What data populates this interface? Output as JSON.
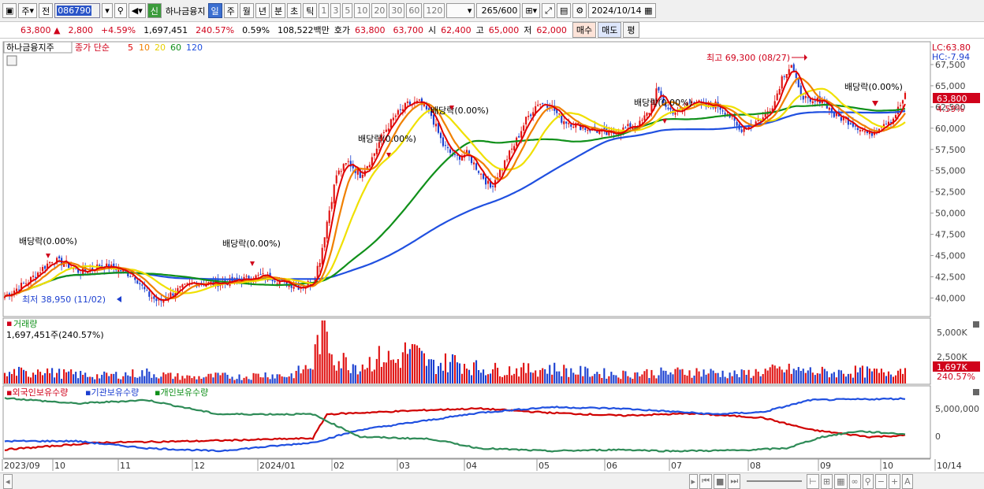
{
  "toolbar": {
    "market": "주",
    "period_prefix": "전",
    "code": "086790",
    "credit": "신",
    "name": "하나금융지",
    "periods": [
      "일",
      "주",
      "월",
      "년",
      "분",
      "초",
      "틱"
    ],
    "selected_period": "일",
    "intervals": [
      "1",
      "3",
      "5",
      "10",
      "20",
      "30",
      "60",
      "120"
    ],
    "count": "265",
    "count_max": "/600",
    "date": "2024/10/14"
  },
  "quote": {
    "price": "63,800",
    "change": "2,800",
    "change_pct": "+4.59%",
    "volume": "1,697,451",
    "volume_ratio": "240.57%",
    "turnover": "0.59%",
    "amount": "108,522백만",
    "bid_label": "호가",
    "bid": "63,800",
    "ask": "63,700",
    "open_label": "시",
    "open": "62,400",
    "high_label": "고",
    "high": "65,000",
    "low_label": "저",
    "low": "62,000",
    "buy": "매수",
    "sell": "매도",
    "avg": "평"
  },
  "legend": {
    "title": "하나금융지주",
    "close": "종가 단순",
    "ma": [
      "5",
      "10",
      "20",
      "60",
      "120"
    ]
  },
  "annotations": {
    "lc": "LC:63.80",
    "hc": "HC:-7.94",
    "price_tag": "63,800",
    "pct_tag": "4.59%",
    "high": "최고 69,300 (08/27)",
    "low": "최저 38,950 (11/02)",
    "div1": "배당락(0.00%)",
    "div2": "배당락(0.00%)",
    "div3": "배당락(0.00%)",
    "div4": "배당락(0.00%)",
    "div5": "배당락(0.00%)",
    "div6": "배당락(0.00%)"
  },
  "volume_panel": {
    "title": "거래량",
    "value": "1,697,451주(240.57%)",
    "tag": "1,697K",
    "tag_pct": "240.57%",
    "ticks": [
      "5,000K",
      "2,500K"
    ]
  },
  "holdings_panel": {
    "series": [
      "외국인보유수량",
      "기관보유수량",
      "개인보유수량"
    ],
    "ticks": [
      "5,000,000",
      "0"
    ]
  },
  "chart_data": {
    "type": "candlestick",
    "y_ticks": [
      "67,500",
      "65,000",
      "62,500",
      "60,000",
      "57,500",
      "55,000",
      "52,500",
      "50,000",
      "47,500",
      "45,000",
      "42,500",
      "40,000"
    ],
    "x_labels": [
      "2023/09",
      "10",
      "11",
      "12",
      "2024/01",
      "02",
      "03",
      "04",
      "05",
      "06",
      "07",
      "08",
      "09",
      "10",
      "10/14"
    ],
    "ylim": [
      38000,
      70000
    ],
    "colors": {
      "up": "#e01010",
      "down": "#1a3fd0",
      "ma5": "#e00000",
      "ma10": "#f08000",
      "ma20": "#f0e000",
      "ma60": "#10901a",
      "ma120": "#2050e0"
    },
    "price_path": [
      [
        0,
        40200
      ],
      [
        10,
        42000
      ],
      [
        20,
        44500
      ],
      [
        26,
        44000
      ],
      [
        32,
        43000
      ],
      [
        40,
        43800
      ],
      [
        47,
        43500
      ],
      [
        55,
        42500
      ],
      [
        60,
        40500
      ],
      [
        65,
        39500
      ],
      [
        72,
        40800
      ],
      [
        80,
        41800
      ],
      [
        87,
        41700
      ],
      [
        95,
        41900
      ],
      [
        103,
        42300
      ],
      [
        108,
        42600
      ],
      [
        113,
        42400
      ],
      [
        118,
        41800
      ],
      [
        125,
        41300
      ],
      [
        130,
        42000
      ],
      [
        133,
        44500
      ],
      [
        136,
        49000
      ],
      [
        140,
        54500
      ],
      [
        145,
        56000
      ],
      [
        150,
        54500
      ],
      [
        155,
        56500
      ],
      [
        160,
        59500
      ],
      [
        165,
        61500
      ],
      [
        170,
        62800
      ],
      [
        175,
        63000
      ],
      [
        180,
        61500
      ],
      [
        185,
        58000
      ],
      [
        190,
        56500
      ],
      [
        195,
        57000
      ],
      [
        200,
        55000
      ],
      [
        205,
        53000
      ],
      [
        210,
        55500
      ],
      [
        215,
        58000
      ],
      [
        220,
        61000
      ],
      [
        225,
        63000
      ],
      [
        230,
        62800
      ],
      [
        235,
        61000
      ],
      [
        240,
        60500
      ],
      [
        245,
        60000
      ],
      [
        250,
        59700
      ],
      [
        255,
        59200
      ],
      [
        262,
        60000
      ],
      [
        268,
        60500
      ],
      [
        272,
        62000
      ],
      [
        275,
        64500
      ],
      [
        280,
        62200
      ],
      [
        285,
        61800
      ],
      [
        290,
        63500
      ],
      [
        295,
        62500
      ],
      [
        300,
        62800
      ],
      [
        305,
        61800
      ],
      [
        310,
        59800
      ],
      [
        315,
        60500
      ],
      [
        320,
        61200
      ],
      [
        325,
        63200
      ],
      [
        328,
        66000
      ],
      [
        332,
        67500
      ],
      [
        335,
        64500
      ],
      [
        340,
        62800
      ],
      [
        345,
        63500
      ],
      [
        350,
        61500
      ],
      [
        355,
        61000
      ],
      [
        360,
        60200
      ],
      [
        365,
        59200
      ],
      [
        370,
        60500
      ],
      [
        375,
        61200
      ],
      [
        380,
        63800
      ]
    ],
    "volume_path": [
      [
        0,
        25
      ],
      [
        5,
        40
      ],
      [
        10,
        30
      ],
      [
        15,
        55
      ],
      [
        20,
        35
      ],
      [
        30,
        30
      ],
      [
        40,
        25
      ],
      [
        50,
        30
      ],
      [
        60,
        35
      ],
      [
        70,
        25
      ],
      [
        80,
        20
      ],
      [
        90,
        25
      ],
      [
        100,
        22
      ],
      [
        110,
        30
      ],
      [
        120,
        25
      ],
      [
        130,
        60
      ],
      [
        133,
        170
      ],
      [
        136,
        160
      ],
      [
        140,
        80
      ],
      [
        150,
        60
      ],
      [
        155,
        75
      ],
      [
        160,
        90
      ],
      [
        165,
        70
      ],
      [
        170,
        110
      ],
      [
        175,
        90
      ],
      [
        180,
        60
      ],
      [
        190,
        75
      ],
      [
        200,
        50
      ],
      [
        210,
        45
      ],
      [
        220,
        45
      ],
      [
        230,
        50
      ],
      [
        240,
        40
      ],
      [
        250,
        35
      ],
      [
        260,
        30
      ],
      [
        270,
        35
      ],
      [
        280,
        35
      ],
      [
        290,
        40
      ],
      [
        300,
        35
      ],
      [
        310,
        30
      ],
      [
        320,
        40
      ],
      [
        330,
        45
      ],
      [
        340,
        40
      ],
      [
        350,
        35
      ],
      [
        360,
        40
      ],
      [
        370,
        35
      ],
      [
        380,
        50
      ]
    ],
    "foreign_path": [
      [
        0,
        10
      ],
      [
        40,
        20
      ],
      [
        80,
        22
      ],
      [
        130,
        26
      ],
      [
        136,
        60
      ],
      [
        180,
        66
      ],
      [
        200,
        68
      ],
      [
        230,
        62
      ],
      [
        260,
        58
      ],
      [
        290,
        61
      ],
      [
        320,
        55
      ],
      [
        340,
        38
      ],
      [
        365,
        28
      ],
      [
        380,
        30
      ]
    ],
    "inst_path": [
      [
        0,
        22
      ],
      [
        30,
        22
      ],
      [
        60,
        12
      ],
      [
        90,
        8
      ],
      [
        130,
        20
      ],
      [
        150,
        38
      ],
      [
        180,
        52
      ],
      [
        200,
        62
      ],
      [
        230,
        70
      ],
      [
        260,
        68
      ],
      [
        300,
        60
      ],
      [
        320,
        63
      ],
      [
        340,
        80
      ],
      [
        380,
        82
      ]
    ],
    "indiv_path": [
      [
        0,
        83
      ],
      [
        30,
        75
      ],
      [
        60,
        80
      ],
      [
        90,
        60
      ],
      [
        130,
        60
      ],
      [
        150,
        28
      ],
      [
        180,
        25
      ],
      [
        200,
        12
      ],
      [
        230,
        8
      ],
      [
        260,
        10
      ],
      [
        280,
        8
      ],
      [
        310,
        9
      ],
      [
        330,
        12
      ],
      [
        345,
        28
      ],
      [
        360,
        36
      ],
      [
        380,
        32
      ]
    ]
  }
}
